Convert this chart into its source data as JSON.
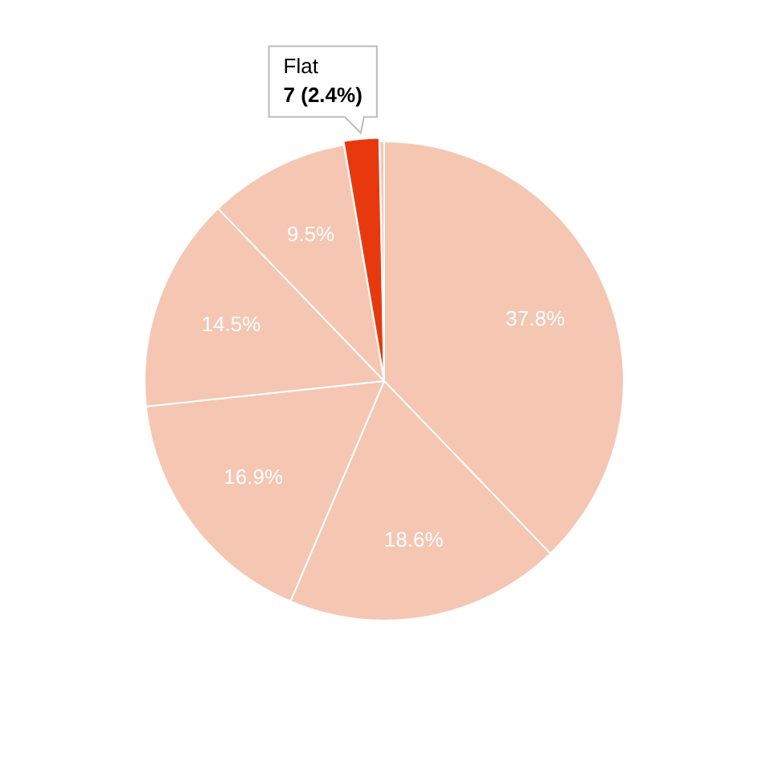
{
  "chart_data": {
    "type": "pie",
    "categories": [
      null,
      null,
      null,
      null,
      null,
      "Flat",
      null
    ],
    "values": [
      37.8,
      18.6,
      16.9,
      14.5,
      9.5,
      2.4,
      0.3
    ],
    "colors": [
      "#f5c6b2",
      "#f5c6b2",
      "#f5c6b2",
      "#f5c6b2",
      "#f5c6b2",
      "#e8390e",
      "#f5c6b2"
    ],
    "value_labels": [
      "37.8%",
      "18.6%",
      "16.9%",
      "14.5%",
      "9.5%",
      null,
      null
    ],
    "annotations": [
      "7 (2.4%)"
    ],
    "legend": false
  }
}
